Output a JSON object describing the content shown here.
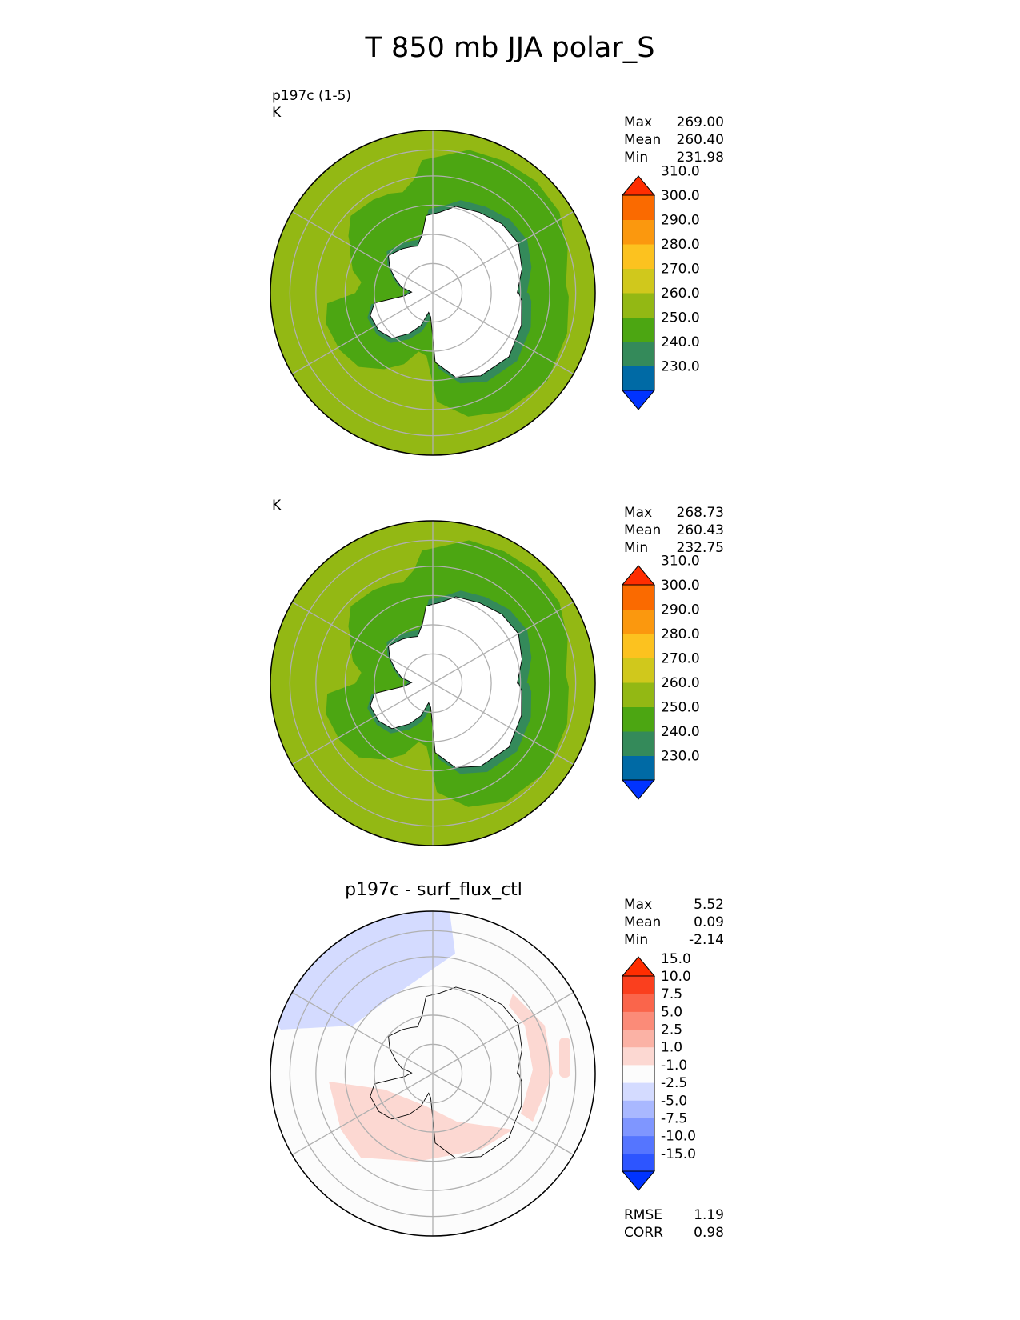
{
  "figure": {
    "suptitle": "T 850 mb JJA polar_S"
  },
  "panels": [
    {
      "id": "test",
      "label_lines": [
        "p197c (1-5)",
        "K"
      ],
      "center_title": "",
      "stats": [
        {
          "label": "Max",
          "value": "269.00"
        },
        {
          "label": "Mean",
          "value": "260.40"
        },
        {
          "label": "Min",
          "value": "231.98"
        }
      ],
      "footer_stats": []
    },
    {
      "id": "reference",
      "label_lines": [
        "K"
      ],
      "center_title": "",
      "stats": [
        {
          "label": "Max",
          "value": "268.73"
        },
        {
          "label": "Mean",
          "value": "260.43"
        },
        {
          "label": "Min",
          "value": "232.75"
        }
      ],
      "footer_stats": []
    },
    {
      "id": "difference",
      "label_lines": [],
      "center_title": "p197c - surf_flux_ctl",
      "stats": [
        {
          "label": "Max",
          "value": "5.52"
        },
        {
          "label": "Mean",
          "value": "0.09"
        },
        {
          "label": "Min",
          "value": "-2.14"
        }
      ],
      "footer_stats": [
        {
          "label": "RMSE",
          "value": "1.19"
        },
        {
          "label": "CORR",
          "value": "0.98"
        }
      ]
    }
  ],
  "colors": {
    "temp_bins": [
      "#0033ff",
      "#006aa5",
      "#348a5a",
      "#4ca612",
      "#93b814",
      "#d0c81c",
      "#fcc21f",
      "#fb980e",
      "#fa6a00",
      "#ff2d00"
    ],
    "diff_bins": [
      "#0033ff",
      "#2d55ff",
      "#5575ff",
      "#7f96ff",
      "#a9b8ff",
      "#d4dbff",
      "#fcfcfc",
      "#fcd8d2",
      "#fbb2a5",
      "#fb8b78",
      "#fa654b",
      "#fa3f1e",
      "#ff2d00"
    ],
    "land": "#ffffff",
    "grid": "#b0b0b0"
  },
  "chart_data": [
    {
      "type": "heatmap",
      "projection": "south polar stereographic",
      "field": "T 850 mb",
      "units": "K",
      "colorbar": {
        "extend": "both",
        "tick_labels": [
          "230.0",
          "240.0",
          "250.0",
          "260.0",
          "270.0",
          "280.0",
          "290.0",
          "300.0",
          "310.0"
        ]
      },
      "stats": {
        "max": 269.0,
        "mean": 260.4,
        "min": 231.98
      },
      "zones": [
        {
          "region": "outer ocean",
          "value_range": [
            260,
            270
          ]
        },
        {
          "region": "circumpolar ring",
          "value_range": [
            250,
            260
          ]
        },
        {
          "region": "coastal patches",
          "value_range": [
            240,
            250
          ]
        },
        {
          "region": "Antarctica (masked)",
          "value_range": null
        }
      ]
    },
    {
      "type": "heatmap",
      "projection": "south polar stereographic",
      "field": "T 850 mb",
      "units": "K",
      "colorbar": {
        "extend": "both",
        "tick_labels": [
          "230.0",
          "240.0",
          "250.0",
          "260.0",
          "270.0",
          "280.0",
          "290.0",
          "300.0",
          "310.0"
        ]
      },
      "stats": {
        "max": 268.73,
        "mean": 260.43,
        "min": 232.75
      },
      "zones": [
        {
          "region": "outer ocean",
          "value_range": [
            260,
            270
          ]
        },
        {
          "region": "circumpolar ring",
          "value_range": [
            250,
            260
          ]
        },
        {
          "region": "coastal patches",
          "value_range": [
            240,
            250
          ]
        },
        {
          "region": "Antarctica (masked)",
          "value_range": null
        }
      ]
    },
    {
      "type": "heatmap",
      "projection": "south polar stereographic",
      "title": "p197c - surf_flux_ctl",
      "colorbar": {
        "extend": "both",
        "tick_labels": [
          "-15.0",
          "-10.0",
          "-7.5",
          "-5.0",
          "-2.5",
          "-1.0",
          "1.0",
          "2.5",
          "5.0",
          "7.5",
          "10.0",
          "15.0"
        ]
      },
      "stats": {
        "max": 5.52,
        "mean": 0.09,
        "min": -2.14,
        "rmse": 1.19,
        "corr": 0.98
      },
      "zones": [
        {
          "region": "upper-left ocean",
          "value_range": [
            -2.5,
            -1.0
          ]
        },
        {
          "region": "lower-left ocean",
          "value_range": [
            1.0,
            2.5
          ]
        },
        {
          "region": "East Antarctic coast",
          "value_range": [
            1.0,
            2.5
          ]
        },
        {
          "region": "remaining area",
          "value_range": [
            -1.0,
            1.0
          ]
        }
      ]
    }
  ]
}
